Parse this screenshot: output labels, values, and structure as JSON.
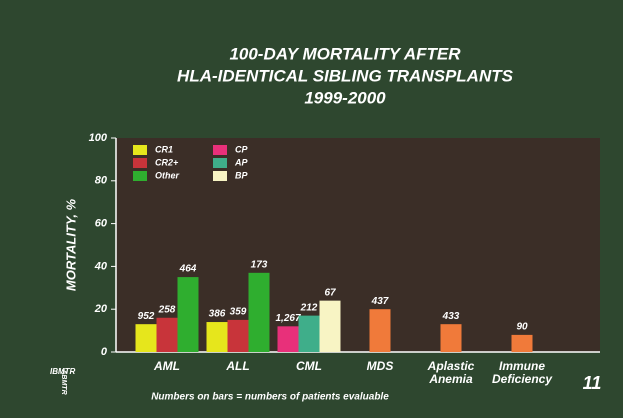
{
  "chart_data": {
    "type": "bar",
    "title_lines": [
      "100-DAY MORTALITY AFTER",
      "HLA-IDENTICAL SIBLING TRANSPLANTS",
      "1999-2000"
    ],
    "y_label": "MORTALITY, %",
    "categories": [
      "AML",
      "ALL",
      "CML",
      "MDS",
      "Aplastic Anemia",
      "Immune Deficiency"
    ],
    "series": [
      {
        "name": "CR1",
        "color": "#e6e61c",
        "values": [
          13,
          14,
          null,
          null,
          null,
          null
        ],
        "patient_counts": [
          952,
          386,
          null,
          null,
          null,
          null
        ]
      },
      {
        "name": "CR2+",
        "color": "#c8343a",
        "values": [
          16,
          15,
          null,
          null,
          null,
          null
        ],
        "patient_counts": [
          258,
          359,
          null,
          null,
          null,
          null
        ]
      },
      {
        "name": "Other",
        "color": "#2fae2f",
        "values": [
          35,
          37,
          null,
          null,
          null,
          null
        ],
        "patient_counts": [
          464,
          173,
          null,
          null,
          null,
          null
        ]
      },
      {
        "name": "CP",
        "color": "#e8307a",
        "values": [
          null,
          null,
          12,
          null,
          null,
          null
        ],
        "patient_counts": [
          null,
          null,
          {
            "value": 1267,
            "label": "1,267"
          },
          null,
          null,
          null
        ]
      },
      {
        "name": "AP",
        "color": "#3fae8a",
        "values": [
          null,
          null,
          17,
          null,
          null,
          null
        ],
        "patient_counts": [
          null,
          null,
          212,
          null,
          null,
          null
        ]
      },
      {
        "name": "BP",
        "color": "#f8f4c4",
        "values": [
          null,
          null,
          24,
          null,
          null,
          null
        ],
        "patient_counts": [
          null,
          null,
          67,
          null,
          null,
          null
        ]
      },
      {
        "color": "#f07a3a",
        "values": [
          null,
          null,
          null,
          20,
          13,
          8
        ],
        "patient_counts": [
          null,
          null,
          null,
          437,
          433,
          90
        ]
      }
    ],
    "ylim": [
      0,
      100
    ],
    "yticks": [
      0,
      20,
      40,
      60,
      80,
      100
    ],
    "footnote": "Numbers on bars = numbers of patients evaluable",
    "slide_number": "11",
    "logo": [
      "IBMTR",
      "ABMTR"
    ]
  }
}
